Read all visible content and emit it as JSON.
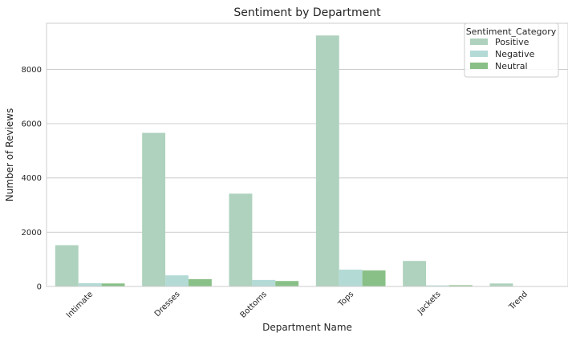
{
  "chart_data": {
    "type": "bar",
    "title": "Sentiment by Department",
    "xlabel": "Department Name",
    "ylabel": "Number of Reviews",
    "categories": [
      "Intimate",
      "Dresses",
      "Bottoms",
      "Tops",
      "Jackets",
      "Trend"
    ],
    "series": [
      {
        "name": "Positive",
        "values": [
          1520,
          5660,
          3420,
          9250,
          940,
          110
        ],
        "color": "#aed2bd"
      },
      {
        "name": "Negative",
        "values": [
          120,
          410,
          240,
          620,
          40,
          10
        ],
        "color": "#b4dad6"
      },
      {
        "name": "Neutral",
        "values": [
          110,
          270,
          200,
          590,
          45,
          5
        ],
        "color": "#88c087"
      }
    ],
    "ylim": [
      0,
      9700
    ],
    "yticks": [
      0,
      2000,
      4000,
      6000,
      8000
    ],
    "grid": true,
    "legend": {
      "title": "Sentiment_Category",
      "placement": "top-right"
    }
  }
}
